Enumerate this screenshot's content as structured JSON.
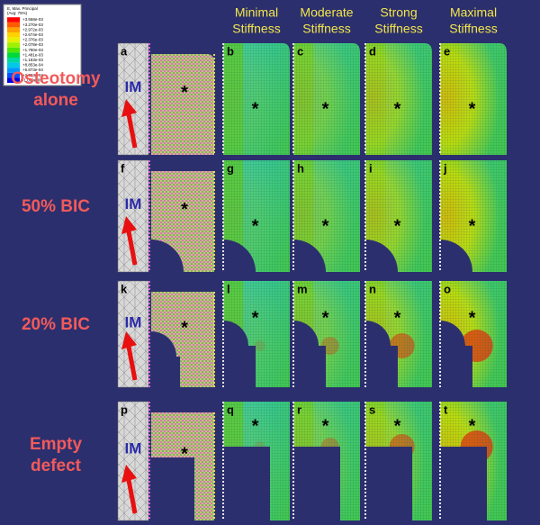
{
  "legend": {
    "title": [
      "E, Max. Principal",
      "(Avg: 75%)"
    ],
    "values": [
      "+3.568e-03",
      "+3.270e-03",
      "+2.972e-03",
      "+2.674e-03",
      "+2.376e-03",
      "+2.078e-03",
      "+1.780e-03",
      "+1.481e-03",
      "+1.183e-03",
      "+8.853e-04",
      "+5.873e-04",
      "+2.893e-04",
      "-1.000e-05"
    ],
    "colors": [
      "#ff0000",
      "#ff5a00",
      "#ffa000",
      "#ffd200",
      "#e6f000",
      "#a0f000",
      "#50e600",
      "#00d83c",
      "#00d8a0",
      "#00c8e6",
      "#0096ff",
      "#0050ff",
      "#0000e0"
    ]
  },
  "column_titles": [
    [
      "Minimal",
      "Stiffness"
    ],
    [
      "Moderate",
      "Stiffness"
    ],
    [
      "Strong",
      "Stiffness"
    ],
    [
      "Maximal",
      "Stiffness"
    ]
  ],
  "implant_label": "IM",
  "marker": "*",
  "rows": [
    {
      "label": [
        "Osteotomy",
        "alone"
      ],
      "panel_letters": [
        "a",
        "b",
        "c",
        "d",
        "e"
      ]
    },
    {
      "label": [
        "50% BIC"
      ],
      "panel_letters": [
        "f",
        "g",
        "h",
        "i",
        "j"
      ]
    },
    {
      "label": [
        "20% BIC"
      ],
      "panel_letters": [
        "k",
        "l",
        "m",
        "n",
        "o"
      ]
    },
    {
      "label": [
        "Empty",
        "defect"
      ],
      "panel_letters": [
        "p",
        "q",
        "r",
        "s",
        "t"
      ]
    }
  ]
}
